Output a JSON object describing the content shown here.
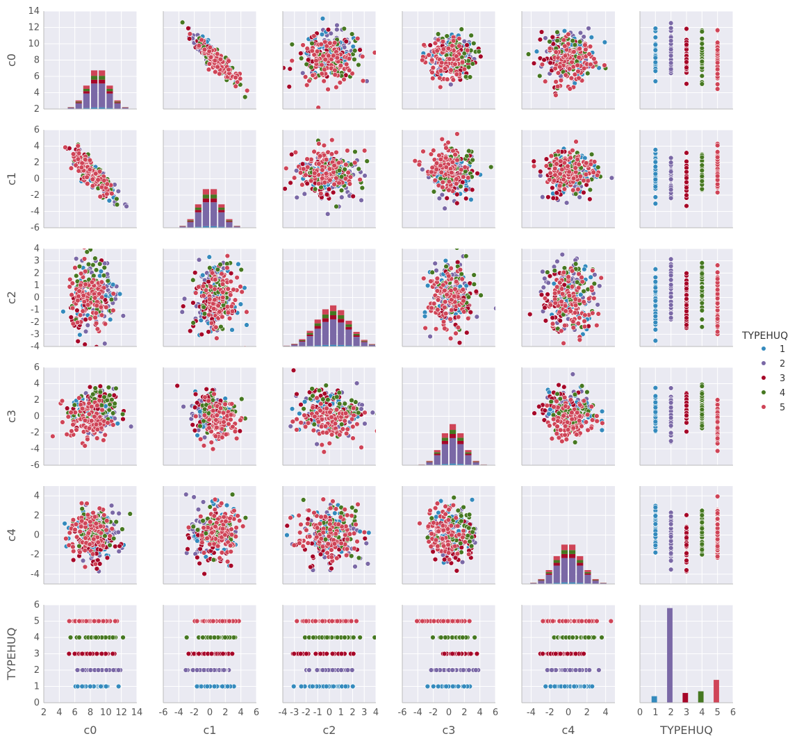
{
  "chart_data": {
    "type": "pairplot",
    "variables": [
      "c0",
      "c1",
      "c2",
      "c3",
      "c4",
      "TYPEHUQ"
    ],
    "ranges": {
      "c0": [
        2,
        14
      ],
      "c1": [
        -6,
        6
      ],
      "c2": [
        -4,
        4
      ],
      "c3": [
        -6,
        6
      ],
      "c4": [
        -5,
        5
      ],
      "TYPEHUQ": [
        0,
        6
      ]
    },
    "ticks": {
      "c0": [
        "2",
        "4",
        "6",
        "8",
        "10",
        "12",
        "14"
      ],
      "c1": [
        "-6",
        "-4",
        "-2",
        "0",
        "2",
        "4",
        "6"
      ],
      "c2": [
        "-4",
        "-3",
        "-2",
        "-1",
        "0",
        "1",
        "2",
        "3",
        "4"
      ],
      "c3": [
        "-6",
        "-4",
        "-2",
        "0",
        "2",
        "4",
        "6"
      ],
      "c4": [
        "-4",
        "-2",
        "0",
        "2",
        "4"
      ],
      "TYPEHUQ": [
        "0",
        "1",
        "2",
        "3",
        "4",
        "5",
        "6"
      ]
    },
    "legend": {
      "title": "TYPEHUQ",
      "placement": "right",
      "entries": [
        {
          "label": "1",
          "color": "#348abd"
        },
        {
          "label": "2",
          "color": "#7a68a6"
        },
        {
          "label": "3",
          "color": "#a60628"
        },
        {
          "label": "4",
          "color": "#467821"
        },
        {
          "label": "5",
          "color": "#cf4457"
        }
      ]
    },
    "group_centers": {
      "1": [
        8.5,
        0.6,
        0.0,
        0.5,
        0.5
      ],
      "2": [
        9.0,
        0.0,
        0.3,
        0.5,
        0.0
      ],
      "3": [
        8.3,
        0.2,
        -0.5,
        1.0,
        -0.8
      ],
      "4": [
        8.5,
        1.0,
        0.5,
        0.8,
        0.6
      ],
      "5": [
        7.8,
        1.2,
        -0.2,
        -0.5,
        0.3
      ]
    },
    "typehuq_bar_counts": [
      {
        "category": 1,
        "value": 0.4
      },
      {
        "category": 2,
        "value": 5.8
      },
      {
        "category": 3,
        "value": 0.6
      },
      {
        "category": 4,
        "value": 0.7
      },
      {
        "category": 5,
        "value": 1.4
      }
    ],
    "grid": true
  }
}
